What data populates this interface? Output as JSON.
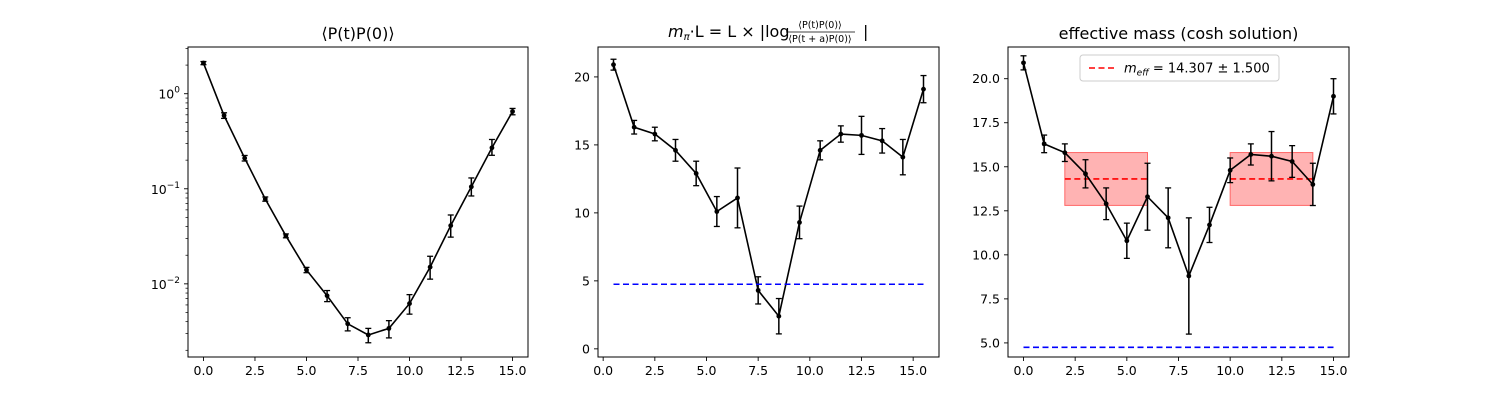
{
  "chart_data": [
    {
      "type": "line",
      "title": "⟨P(t)P(0)⟩",
      "y_scale": "log",
      "xlim": [
        -0.75,
        15.75
      ],
      "ylim": [
        0.0017,
        3.1
      ],
      "grid": false,
      "x_ticks": [
        0,
        2.5,
        5,
        7.5,
        10,
        12.5,
        15
      ],
      "x_tick_labels": [
        "0.0",
        "2.5",
        "5.0",
        "7.5",
        "10.0",
        "12.5",
        "15.0"
      ],
      "y_ticks": [
        1,
        0.1,
        0.01
      ],
      "y_tick_labels": [
        {
          "base": "10",
          "exp": "0"
        },
        {
          "base": "10",
          "exp": "−1"
        },
        {
          "base": "10",
          "exp": "−2"
        }
      ],
      "series": [
        {
          "color": "#000000",
          "x": [
            0,
            1,
            2,
            3,
            4,
            5,
            6,
            7,
            8,
            9,
            10,
            11,
            12,
            13,
            14,
            15
          ],
          "y": [
            2.1,
            0.59,
            0.21,
            0.078,
            0.032,
            0.014,
            0.0075,
            0.0038,
            0.0029,
            0.0034,
            0.0062,
            0.015,
            0.041,
            0.105,
            0.27,
            0.65
          ],
          "y_low": [
            2.02,
            0.55,
            0.196,
            0.074,
            0.0305,
            0.0131,
            0.0065,
            0.0032,
            0.0024,
            0.0027,
            0.0048,
            0.0112,
            0.031,
            0.084,
            0.225,
            0.6
          ],
          "y_high": [
            2.18,
            0.63,
            0.224,
            0.082,
            0.0335,
            0.0149,
            0.0085,
            0.0044,
            0.0034,
            0.0041,
            0.0077,
            0.0195,
            0.053,
            0.13,
            0.33,
            0.7
          ]
        }
      ]
    },
    {
      "type": "line",
      "title": {
        "m": "m",
        "sub": "π",
        "rest1": "·L = L × |log",
        "num": "⟨P(t)P(0)⟩",
        "den": "⟨P(t + a)P(0)⟩",
        "rest2": "|"
      },
      "xlim": [
        -0.25,
        16.25
      ],
      "ylim": [
        -0.6,
        22.2
      ],
      "grid": false,
      "x_ticks": [
        0,
        2.5,
        5,
        7.5,
        10,
        12.5,
        15
      ],
      "x_tick_labels": [
        "0.0",
        "2.5",
        "5.0",
        "7.5",
        "10.0",
        "12.5",
        "15.0"
      ],
      "y_ticks": [
        0,
        5,
        10,
        15,
        20
      ],
      "y_tick_labels": [
        "0",
        "5",
        "10",
        "15",
        "20"
      ],
      "series": [
        {
          "color": "#000000",
          "x": [
            0.5,
            1.5,
            2.5,
            3.5,
            4.5,
            5.5,
            6.5,
            7.5,
            8.5,
            9.5,
            10.5,
            11.5,
            12.5,
            13.5,
            14.5,
            15.5
          ],
          "y": [
            20.9,
            16.3,
            15.8,
            14.6,
            12.9,
            10.1,
            11.1,
            4.3,
            2.4,
            9.3,
            14.6,
            15.8,
            15.7,
            15.3,
            14.1,
            19.1
          ],
          "err": [
            0.4,
            0.5,
            0.5,
            0.8,
            0.9,
            1.1,
            2.2,
            1.0,
            1.3,
            1.2,
            0.7,
            0.6,
            1.4,
            0.9,
            1.3,
            1.0
          ]
        },
        {
          "color": "#0000ff",
          "style": "dashed",
          "x": [
            0.5,
            15.5
          ],
          "y": [
            4.75,
            4.75
          ]
        }
      ]
    },
    {
      "type": "line",
      "title": "effective mass (cosh solution)",
      "xlim": [
        -0.75,
        15.75
      ],
      "ylim": [
        4.2,
        21.8
      ],
      "grid": false,
      "legend": {
        "placement": "top-center",
        "color": "#ff0000",
        "label_var": "m",
        "label_sub": "eff",
        "label_rest": " = 14.307 ± 1.500"
      },
      "x_ticks": [
        0,
        2.5,
        5,
        7.5,
        10,
        12.5,
        15
      ],
      "x_tick_labels": [
        "0.0",
        "2.5",
        "5.0",
        "7.5",
        "10.0",
        "12.5",
        "15.0"
      ],
      "y_ticks": [
        5,
        7.5,
        10,
        12.5,
        15,
        17.5,
        20
      ],
      "y_tick_labels": [
        "5.0",
        "7.5",
        "10.0",
        "12.5",
        "15.0",
        "17.5",
        "20.0"
      ],
      "bands": [
        {
          "x": [
            2,
            6
          ],
          "y_low": 12.807,
          "y_high": 15.807,
          "center": 14.307,
          "fill": "#ff9999",
          "line": "#ff0000"
        },
        {
          "x": [
            10,
            14
          ],
          "y_low": 12.807,
          "y_high": 15.807,
          "center": 14.307,
          "fill": "#ff9999",
          "line": "#ff0000"
        }
      ],
      "series": [
        {
          "color": "#000000",
          "x": [
            0,
            1,
            2,
            3,
            4,
            5,
            6,
            7,
            8,
            9,
            10,
            11,
            12,
            13,
            14,
            15
          ],
          "y": [
            20.9,
            16.3,
            15.8,
            14.6,
            12.9,
            10.8,
            13.3,
            12.1,
            8.8,
            11.7,
            14.8,
            15.7,
            15.6,
            15.3,
            14.0,
            19.0
          ],
          "err": [
            0.4,
            0.5,
            0.5,
            0.8,
            0.9,
            1.0,
            1.9,
            1.7,
            3.3,
            1.0,
            0.7,
            0.6,
            1.4,
            0.9,
            1.2,
            1.0
          ]
        },
        {
          "color": "#0000ff",
          "style": "dashed",
          "x": [
            0,
            15
          ],
          "y": [
            4.75,
            4.75
          ]
        }
      ]
    }
  ]
}
